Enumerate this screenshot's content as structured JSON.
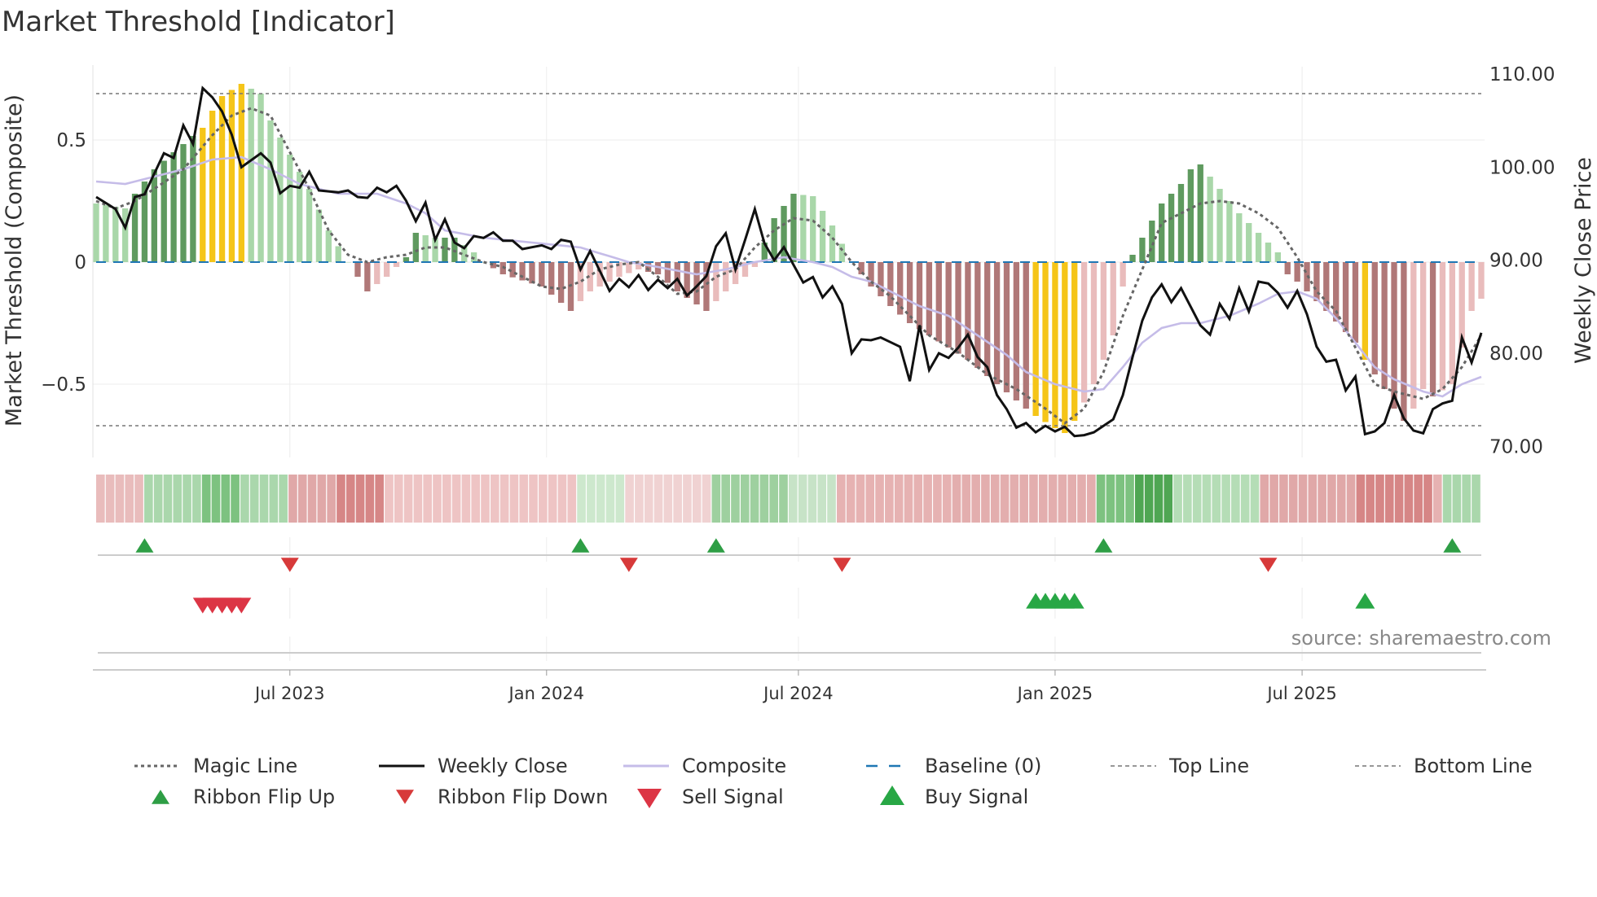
{
  "chart_data": {
    "type": "bar+line",
    "title": "Market Threshold [Indicator]",
    "ylabel_left": "Market Threshold (Composite)",
    "ylabel_right": "Weekly Close Price",
    "ylim_left": [
      -0.8,
      0.8
    ],
    "ylim_right": [
      68.8,
      110.8
    ],
    "yticks_left": [
      {
        "value": 0.5,
        "label": "0.5"
      },
      {
        "value": 0,
        "label": "0"
      },
      {
        "value": -0.5,
        "label": "−0.5"
      }
    ],
    "yticks_right": [
      {
        "value": 110,
        "label": "110.00"
      },
      {
        "value": 100,
        "label": "100.00"
      },
      {
        "value": 90,
        "label": "90.00"
      },
      {
        "value": 80,
        "label": "80.00"
      },
      {
        "value": 70,
        "label": "70.00"
      }
    ],
    "x_range": [
      0,
      143
    ],
    "xticks": [
      {
        "week": 20,
        "label": "Jul 2023"
      },
      {
        "week": 46.5,
        "label": "Jan 2024"
      },
      {
        "week": 72.5,
        "label": "Jul 2024"
      },
      {
        "week": 99,
        "label": "Jan 2025"
      },
      {
        "week": 124.5,
        "label": "Jul 2025"
      }
    ],
    "top_line": 0.69,
    "bottom_line": -0.67,
    "histogram_anchors": [
      [
        0,
        0.24
      ],
      [
        3,
        0.22
      ],
      [
        4,
        0.28
      ],
      [
        6,
        0.38
      ],
      [
        8,
        0.45
      ],
      [
        11,
        0.55
      ],
      [
        12,
        0.62
      ],
      [
        13,
        0.68
      ],
      [
        15,
        0.73
      ],
      [
        17,
        0.69
      ],
      [
        18,
        0.58
      ],
      [
        20,
        0.44
      ],
      [
        22,
        0.3
      ],
      [
        24,
        0.13
      ],
      [
        26,
        0.0
      ],
      [
        27,
        -0.06
      ],
      [
        28,
        -0.12
      ],
      [
        30,
        -0.06
      ],
      [
        32,
        0.02
      ],
      [
        33,
        0.12
      ],
      [
        35,
        0.1
      ],
      [
        37,
        0.1
      ],
      [
        39,
        0.04
      ],
      [
        40,
        0.0
      ],
      [
        42,
        -0.05
      ],
      [
        46,
        -0.1
      ],
      [
        49,
        -0.2
      ],
      [
        51,
        -0.12
      ],
      [
        54,
        -0.06
      ],
      [
        56,
        -0.03
      ],
      [
        58,
        -0.05
      ],
      [
        60,
        -0.12
      ],
      [
        63,
        -0.2
      ],
      [
        65,
        -0.12
      ],
      [
        67,
        -0.06
      ],
      [
        68,
        -0.02
      ],
      [
        70,
        0.18
      ],
      [
        72,
        0.28
      ],
      [
        74,
        0.27
      ],
      [
        76,
        0.15
      ],
      [
        78,
        0.0
      ],
      [
        80,
        -0.1
      ],
      [
        82,
        -0.18
      ],
      [
        84,
        -0.25
      ],
      [
        86,
        -0.3
      ],
      [
        90,
        -0.4
      ],
      [
        93,
        -0.5
      ],
      [
        96,
        -0.6
      ],
      [
        97,
        -0.63
      ],
      [
        99,
        -0.68
      ],
      [
        100,
        -0.7
      ],
      [
        101,
        -0.65
      ],
      [
        103,
        -0.5
      ],
      [
        105,
        -0.3
      ],
      [
        106,
        -0.1
      ],
      [
        107,
        0.03
      ],
      [
        108,
        0.1
      ],
      [
        110,
        0.24
      ],
      [
        112,
        0.32
      ],
      [
        113,
        0.38
      ],
      [
        114,
        0.4
      ],
      [
        116,
        0.3
      ],
      [
        118,
        0.2
      ],
      [
        120,
        0.12
      ],
      [
        122,
        0.04
      ],
      [
        123,
        -0.05
      ],
      [
        124,
        -0.08
      ],
      [
        127,
        -0.2
      ],
      [
        130,
        -0.33
      ],
      [
        131,
        -0.4
      ],
      [
        133,
        -0.52
      ],
      [
        134,
        -0.6
      ],
      [
        135,
        -0.65
      ],
      [
        136,
        -0.6
      ],
      [
        137,
        -0.52
      ],
      [
        138,
        -0.55
      ],
      [
        140,
        -0.5
      ],
      [
        141,
        -0.35
      ],
      [
        142,
        -0.2
      ],
      [
        143,
        -0.15
      ]
    ],
    "yellow_weeks": [
      [
        11,
        15
      ],
      [
        97,
        101
      ],
      [
        131,
        131
      ]
    ],
    "weekly_close_anchors": [
      [
        0,
        96.8
      ],
      [
        2,
        95.5
      ],
      [
        3,
        93.5
      ],
      [
        4,
        96.8
      ],
      [
        5,
        97.1
      ],
      [
        7,
        101.5
      ],
      [
        8,
        101
      ],
      [
        9,
        104.5
      ],
      [
        10,
        102.5
      ],
      [
        11,
        108.5
      ],
      [
        12,
        107.5
      ],
      [
        13,
        106
      ],
      [
        14,
        103.5
      ],
      [
        15,
        100
      ],
      [
        17,
        101.5
      ],
      [
        18,
        100.5
      ],
      [
        19,
        97.2
      ],
      [
        20,
        98
      ],
      [
        21,
        97.8
      ],
      [
        22,
        99.5
      ],
      [
        23,
        97.5
      ],
      [
        25,
        97.3
      ],
      [
        26,
        97.5
      ],
      [
        27,
        96.8
      ],
      [
        28,
        96.7
      ],
      [
        29,
        97.8
      ],
      [
        30,
        97.3
      ],
      [
        31,
        98
      ],
      [
        32,
        96.4
      ],
      [
        33,
        94.2
      ],
      [
        34,
        96.2
      ],
      [
        35,
        92.2
      ],
      [
        36,
        94.4
      ],
      [
        37,
        91.9
      ],
      [
        38,
        91.3
      ],
      [
        39,
        92.6
      ],
      [
        40,
        92.4
      ],
      [
        41,
        93
      ],
      [
        42,
        92.1
      ],
      [
        43,
        92.1
      ],
      [
        44,
        91.2
      ],
      [
        45,
        91.4
      ],
      [
        46,
        91.6
      ],
      [
        47,
        91.2
      ],
      [
        48,
        92.2
      ],
      [
        49,
        92
      ],
      [
        50,
        89
      ],
      [
        51,
        91
      ],
      [
        53,
        86.7
      ],
      [
        54,
        88
      ],
      [
        55,
        87.1
      ],
      [
        56,
        88.4
      ],
      [
        57,
        86.8
      ],
      [
        58,
        87.9
      ],
      [
        59,
        87
      ],
      [
        60,
        88
      ],
      [
        61,
        86.2
      ],
      [
        62,
        87.2
      ],
      [
        63,
        88.3
      ],
      [
        64,
        91.5
      ],
      [
        65,
        92.9
      ],
      [
        66,
        89
      ],
      [
        67,
        92.2
      ],
      [
        68,
        95.5
      ],
      [
        69,
        91.8
      ],
      [
        70,
        90
      ],
      [
        71,
        91.4
      ],
      [
        72,
        89.5
      ],
      [
        73,
        87.6
      ],
      [
        74,
        88.2
      ],
      [
        75,
        86
      ],
      [
        76,
        87.2
      ],
      [
        77,
        85.3
      ],
      [
        78,
        80
      ],
      [
        79,
        81.5
      ],
      [
        80,
        81.4
      ],
      [
        81,
        81.7
      ],
      [
        82,
        81.2
      ],
      [
        83,
        80.7
      ],
      [
        84,
        77
      ],
      [
        85,
        83
      ],
      [
        86,
        78.2
      ],
      [
        87,
        80
      ],
      [
        88,
        79.5
      ],
      [
        89,
        80.6
      ],
      [
        90,
        82
      ],
      [
        91,
        79.6
      ],
      [
        92,
        78.5
      ],
      [
        93,
        75.5
      ],
      [
        94,
        74
      ],
      [
        95,
        72
      ],
      [
        96,
        72.5
      ],
      [
        97,
        71.5
      ],
      [
        98,
        72.2
      ],
      [
        99,
        71.6
      ],
      [
        100,
        72.1
      ],
      [
        101,
        71.1
      ],
      [
        102,
        71.2
      ],
      [
        103,
        71.5
      ],
      [
        104,
        72.2
      ],
      [
        105,
        72.9
      ],
      [
        106,
        75.5
      ],
      [
        107,
        79.6
      ],
      [
        108,
        83.5
      ],
      [
        109,
        86
      ],
      [
        110,
        87.4
      ],
      [
        111,
        85.5
      ],
      [
        112,
        87
      ],
      [
        113,
        85
      ],
      [
        114,
        83
      ],
      [
        115,
        82
      ],
      [
        116,
        85.3
      ],
      [
        117,
        83.7
      ],
      [
        118,
        87
      ],
      [
        119,
        84.5
      ],
      [
        120,
        87.7
      ],
      [
        121,
        87.5
      ],
      [
        122,
        86.5
      ],
      [
        123,
        84.9
      ],
      [
        124,
        86.7
      ],
      [
        125,
        84.2
      ],
      [
        126,
        80.7
      ],
      [
        127,
        79.1
      ],
      [
        128,
        79.3
      ],
      [
        129,
        76
      ],
      [
        130,
        77.5
      ],
      [
        131,
        71.3
      ],
      [
        132,
        71.6
      ],
      [
        133,
        72.5
      ],
      [
        134,
        75.5
      ],
      [
        135,
        73
      ],
      [
        136,
        71.7
      ],
      [
        137,
        71.4
      ],
      [
        138,
        74
      ],
      [
        139,
        74.6
      ],
      [
        140,
        74.9
      ],
      [
        141,
        81.7
      ],
      [
        142,
        79
      ],
      [
        143,
        82.2
      ]
    ],
    "composite_anchors": [
      [
        0,
        0.33
      ],
      [
        3,
        0.32
      ],
      [
        6,
        0.35
      ],
      [
        9,
        0.38
      ],
      [
        12,
        0.42
      ],
      [
        15,
        0.43
      ],
      [
        18,
        0.38
      ],
      [
        21,
        0.32
      ],
      [
        25,
        0.28
      ],
      [
        29,
        0.28
      ],
      [
        32,
        0.24
      ],
      [
        34,
        0.2
      ],
      [
        36,
        0.13
      ],
      [
        40,
        0.1
      ],
      [
        45,
        0.08
      ],
      [
        50,
        0.06
      ],
      [
        55,
        0.0
      ],
      [
        58,
        -0.02
      ],
      [
        62,
        -0.05
      ],
      [
        65,
        -0.03
      ],
      [
        68,
        0.0
      ],
      [
        71,
        0.02
      ],
      [
        74,
        0.0
      ],
      [
        76,
        -0.02
      ],
      [
        78,
        -0.06
      ],
      [
        80,
        -0.08
      ],
      [
        82,
        -0.12
      ],
      [
        85,
        -0.18
      ],
      [
        88,
        -0.22
      ],
      [
        91,
        -0.3
      ],
      [
        94,
        -0.38
      ],
      [
        96,
        -0.45
      ],
      [
        99,
        -0.5
      ],
      [
        102,
        -0.53
      ],
      [
        104,
        -0.52
      ],
      [
        106,
        -0.43
      ],
      [
        108,
        -0.33
      ],
      [
        110,
        -0.27
      ],
      [
        112,
        -0.25
      ],
      [
        114,
        -0.25
      ],
      [
        117,
        -0.22
      ],
      [
        120,
        -0.17
      ],
      [
        122,
        -0.13
      ],
      [
        124,
        -0.12
      ],
      [
        126,
        -0.15
      ],
      [
        128,
        -0.23
      ],
      [
        130,
        -0.33
      ],
      [
        132,
        -0.43
      ],
      [
        134,
        -0.48
      ],
      [
        137,
        -0.53
      ],
      [
        139,
        -0.55
      ],
      [
        141,
        -0.5
      ],
      [
        143,
        -0.47
      ]
    ],
    "magic_anchors": [
      [
        0,
        0.25
      ],
      [
        2,
        0.22
      ],
      [
        4,
        0.25
      ],
      [
        6,
        0.3
      ],
      [
        9,
        0.38
      ],
      [
        12,
        0.52
      ],
      [
        14,
        0.6
      ],
      [
        16,
        0.63
      ],
      [
        18,
        0.6
      ],
      [
        20,
        0.45
      ],
      [
        22,
        0.3
      ],
      [
        24,
        0.13
      ],
      [
        26,
        0.03
      ],
      [
        28,
        0.0
      ],
      [
        30,
        0.02
      ],
      [
        32,
        0.03
      ],
      [
        34,
        0.06
      ],
      [
        36,
        0.06
      ],
      [
        38,
        0.03
      ],
      [
        40,
        0.0
      ],
      [
        42,
        -0.02
      ],
      [
        44,
        -0.06
      ],
      [
        46,
        -0.1
      ],
      [
        48,
        -0.11
      ],
      [
        50,
        -0.08
      ],
      [
        52,
        -0.03
      ],
      [
        54,
        -0.01
      ],
      [
        56,
        0.0
      ],
      [
        58,
        -0.06
      ],
      [
        60,
        -0.13
      ],
      [
        62,
        -0.12
      ],
      [
        64,
        -0.06
      ],
      [
        66,
        -0.03
      ],
      [
        68,
        0.06
      ],
      [
        70,
        0.13
      ],
      [
        72,
        0.18
      ],
      [
        74,
        0.17
      ],
      [
        76,
        0.1
      ],
      [
        78,
        0.0
      ],
      [
        80,
        -0.08
      ],
      [
        82,
        -0.14
      ],
      [
        84,
        -0.22
      ],
      [
        86,
        -0.3
      ],
      [
        89,
        -0.37
      ],
      [
        92,
        -0.46
      ],
      [
        95,
        -0.52
      ],
      [
        98,
        -0.6
      ],
      [
        100,
        -0.66
      ],
      [
        102,
        -0.6
      ],
      [
        104,
        -0.45
      ],
      [
        106,
        -0.22
      ],
      [
        108,
        -0.03
      ],
      [
        110,
        0.16
      ],
      [
        112,
        0.2
      ],
      [
        114,
        0.24
      ],
      [
        116,
        0.25
      ],
      [
        118,
        0.24
      ],
      [
        120,
        0.2
      ],
      [
        122,
        0.14
      ],
      [
        124,
        0.02
      ],
      [
        126,
        -0.12
      ],
      [
        128,
        -0.2
      ],
      [
        130,
        -0.35
      ],
      [
        132,
        -0.5
      ],
      [
        134,
        -0.53
      ],
      [
        137,
        -0.56
      ],
      [
        139,
        -0.52
      ],
      [
        141,
        -0.43
      ],
      [
        143,
        -0.3
      ]
    ],
    "ribbon_segments": [
      [
        0,
        4,
        "#e9bcbc"
      ],
      [
        5,
        10,
        "#aad7ac"
      ],
      [
        11,
        14,
        "#7dc280"
      ],
      [
        15,
        19,
        "#aad7ac"
      ],
      [
        20,
        24,
        "#e0a8a8"
      ],
      [
        25,
        29,
        "#d68686"
      ],
      [
        30,
        49,
        "#eec4c4"
      ],
      [
        50,
        54,
        "#cde8cd"
      ],
      [
        55,
        63,
        "#f0d2d2"
      ],
      [
        64,
        71,
        "#9ed09f"
      ],
      [
        72,
        76,
        "#c7e3c7"
      ],
      [
        77,
        88,
        "#e6b2b2"
      ],
      [
        89,
        103,
        "#e3aeae"
      ],
      [
        104,
        107,
        "#7dc280"
      ],
      [
        108,
        111,
        "#4fa653"
      ],
      [
        112,
        120,
        "#b5ddb6"
      ],
      [
        121,
        130,
        "#e0a8a8"
      ],
      [
        131,
        138,
        "#d68686"
      ],
      [
        139,
        139,
        "#e6b2b2"
      ],
      [
        140,
        143,
        "#aad7ac"
      ]
    ],
    "ribbon_flip_up_weeks": [
      5,
      50,
      64,
      104,
      140
    ],
    "ribbon_flip_down_weeks": [
      20,
      55,
      77,
      121
    ],
    "sell_signal_weeks": [
      11,
      12,
      13,
      14,
      15
    ],
    "buy_signal_weeks": [
      97,
      98,
      99,
      100,
      101,
      131
    ],
    "annotation": "source: sharemaestro.com",
    "legend": [
      {
        "label": "Magic Line",
        "kind": "dotted",
        "color": "#666666"
      },
      {
        "label": "Weekly Close",
        "kind": "solid",
        "color": "#111111"
      },
      {
        "label": "Composite",
        "kind": "solid",
        "color": "#c5bce8"
      },
      {
        "label": "Baseline (0)",
        "kind": "dashed",
        "color": "#1f77b4"
      },
      {
        "label": "Top Line",
        "kind": "finedash",
        "color": "#777777"
      },
      {
        "label": "Bottom Line",
        "kind": "finedash",
        "color": "#777777"
      },
      {
        "label": "Ribbon Flip Up",
        "kind": "tri-up",
        "color": "#2e9e45"
      },
      {
        "label": "Ribbon Flip Down",
        "kind": "tri-down",
        "color": "#d73a3a"
      },
      {
        "label": "Sell Signal",
        "kind": "tri-down-big",
        "color": "#dc3545"
      },
      {
        "label": "Buy Signal",
        "kind": "tri-up-big",
        "color": "#28a745"
      }
    ]
  }
}
